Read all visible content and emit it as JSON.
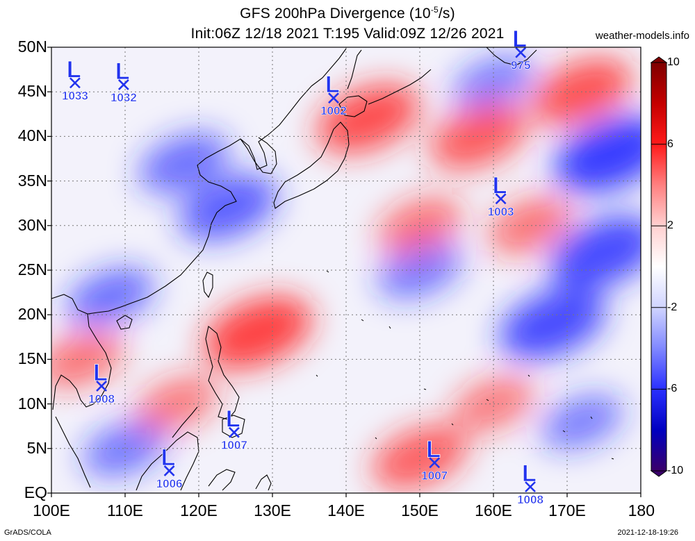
{
  "title_line1": "GFS 200hPa Divergence (10",
  "title_exp": "-5",
  "title_line1_end": "/s)",
  "title_line2": "Init:06Z 12/18 2021 T:195 Valid:09Z 12/26 2021",
  "site": "weather-models.info",
  "footer_left": "GrADS/COLA",
  "footer_right": "2021-12-18-19:26",
  "lat_labels": [
    "50N",
    "45N",
    "40N",
    "35N",
    "30N",
    "25N",
    "20N",
    "15N",
    "10N",
    "5N",
    "EQ"
  ],
  "lon_labels": [
    "100E",
    "110E",
    "120E",
    "130E",
    "140E",
    "150E",
    "160E",
    "170E",
    "180"
  ],
  "colorbar": {
    "labels": [
      "10",
      "6",
      "2",
      "-2",
      "-6",
      "-10"
    ],
    "colors": [
      "#7f0000",
      "#c40000",
      "#ff1a1a",
      "#ff8080",
      "#ffd0d0",
      "#ffffff",
      "#d0d4ff",
      "#8088ff",
      "#2a30ff",
      "#0000c0",
      "#3a006a"
    ]
  },
  "pressure_systems": [
    {
      "type": "L",
      "pressure": "1033",
      "lon": 103.2,
      "lat": 46.0
    },
    {
      "type": "L",
      "pressure": "1032",
      "lon": 109.8,
      "lat": 45.8
    },
    {
      "type": "L",
      "pressure": "1002",
      "lon": 138.3,
      "lat": 44.3
    },
    {
      "type": "L",
      "pressure": "975",
      "lon": 163.7,
      "lat": 49.4
    },
    {
      "type": "L",
      "pressure": "1003",
      "lon": 161.0,
      "lat": 33.0
    },
    {
      "type": "L",
      "pressure": "1008",
      "lon": 106.8,
      "lat": 12.0
    },
    {
      "type": "L",
      "pressure": "1007",
      "lon": 124.8,
      "lat": 6.8
    },
    {
      "type": "L",
      "pressure": "1006",
      "lon": 116.0,
      "lat": 2.5
    },
    {
      "type": "L",
      "pressure": "1007",
      "lon": 152.0,
      "lat": 3.4
    },
    {
      "type": "L",
      "pressure": "1008",
      "lon": 165.0,
      "lat": 0.7
    }
  ],
  "map": {
    "lon_range": [
      100,
      180
    ],
    "lat_range": [
      0,
      50
    ],
    "grid_lines": true,
    "features": [
      {
        "kind": "divergence",
        "name": "strong-convergence-east-asia",
        "sign": -1,
        "lon": 124,
        "lat": 32,
        "strength": 0.7
      },
      {
        "kind": "divergence",
        "name": "convergence-korea-china",
        "sign": -1,
        "lon": 118,
        "lat": 37,
        "strength": 0.55
      },
      {
        "kind": "divergence",
        "name": "convergence-central-north",
        "sign": -1,
        "lon": 160,
        "lat": 46,
        "strength": 0.4
      },
      {
        "kind": "divergence",
        "name": "convergence-east-band-20n",
        "sign": -1,
        "lon": 168,
        "lat": 19,
        "strength": 0.85
      },
      {
        "kind": "divergence",
        "name": "convergence-far-east-45n",
        "sign": -1,
        "lon": 176,
        "lat": 38,
        "strength": 1.0
      },
      {
        "kind": "divergence",
        "name": "convergence-far-east-27n",
        "sign": -1,
        "lon": 175,
        "lat": 27,
        "strength": 0.9
      },
      {
        "kind": "divergence",
        "name": "convergence-south-of-japan",
        "sign": -1,
        "lon": 150,
        "lat": 25,
        "strength": 0.45
      },
      {
        "kind": "divergence",
        "name": "convergence-west-band",
        "sign": -1,
        "lon": 108,
        "lat": 22,
        "strength": 0.5
      },
      {
        "kind": "divergence",
        "name": "convergence-equatorial-west",
        "sign": -1,
        "lon": 110,
        "lat": 5,
        "strength": 0.45
      },
      {
        "kind": "divergence",
        "name": "convergence-equatorial-east",
        "sign": -1,
        "lon": 172,
        "lat": 8,
        "strength": 0.4
      },
      {
        "kind": "divergence",
        "name": "divergence-philippine-sea",
        "sign": 1,
        "lon": 128,
        "lat": 18,
        "strength": 0.9
      },
      {
        "kind": "divergence",
        "name": "divergence-northern-japan",
        "sign": 1,
        "lon": 143,
        "lat": 42,
        "strength": 0.8
      },
      {
        "kind": "divergence",
        "name": "divergence-north-pacific-160e",
        "sign": 1,
        "lon": 158,
        "lat": 40,
        "strength": 0.7
      },
      {
        "kind": "divergence",
        "name": "divergence-north-pacific-175e",
        "sign": 1,
        "lon": 172,
        "lat": 45,
        "strength": 0.75
      },
      {
        "kind": "divergence",
        "name": "divergence-subtropical-band",
        "sign": 1,
        "lon": 150,
        "lat": 30,
        "strength": 0.45
      },
      {
        "kind": "divergence",
        "name": "divergence-vietnam",
        "sign": 1,
        "lon": 104,
        "lat": 15,
        "strength": 0.45
      },
      {
        "kind": "divergence",
        "name": "divergence-equatorial-150e",
        "sign": 1,
        "lon": 150,
        "lat": 4,
        "strength": 0.65
      },
      {
        "kind": "divergence",
        "name": "divergence-equatorial-160e",
        "sign": 1,
        "lon": 160,
        "lat": 10,
        "strength": 0.4
      },
      {
        "kind": "divergence",
        "name": "divergence-east-30n",
        "sign": 1,
        "lon": 165,
        "lat": 30,
        "strength": 0.45
      },
      {
        "kind": "divergence",
        "name": "divergence-south-china-sea",
        "sign": 1,
        "lon": 117,
        "lat": 10,
        "strength": 0.4
      }
    ]
  }
}
